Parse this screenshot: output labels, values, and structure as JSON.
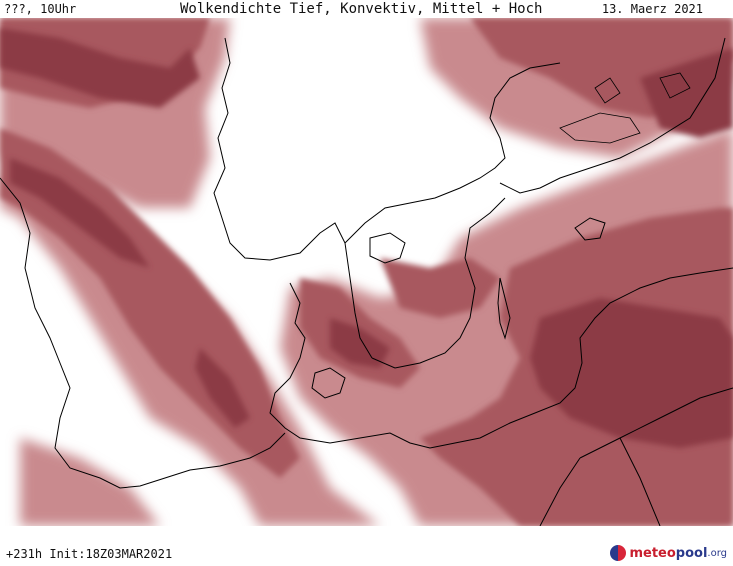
{
  "header": {
    "left": "???, 10Uhr",
    "title": "Wolkendichte  Tief, Konvektiv, Mittel + Hoch",
    "date": "13. Maerz 2021"
  },
  "footer": {
    "run": "+231h  Init:18Z03MAR2021"
  },
  "logo": {
    "part1": "meteo",
    "part2": "pool",
    "part3": ".org"
  },
  "colors": {
    "cloud_dense": "#8c3a44",
    "cloud_medium": "#a8585f",
    "cloud_light": "#c98a8e",
    "land_clear": "#ffffff",
    "coastline": "#000000"
  }
}
